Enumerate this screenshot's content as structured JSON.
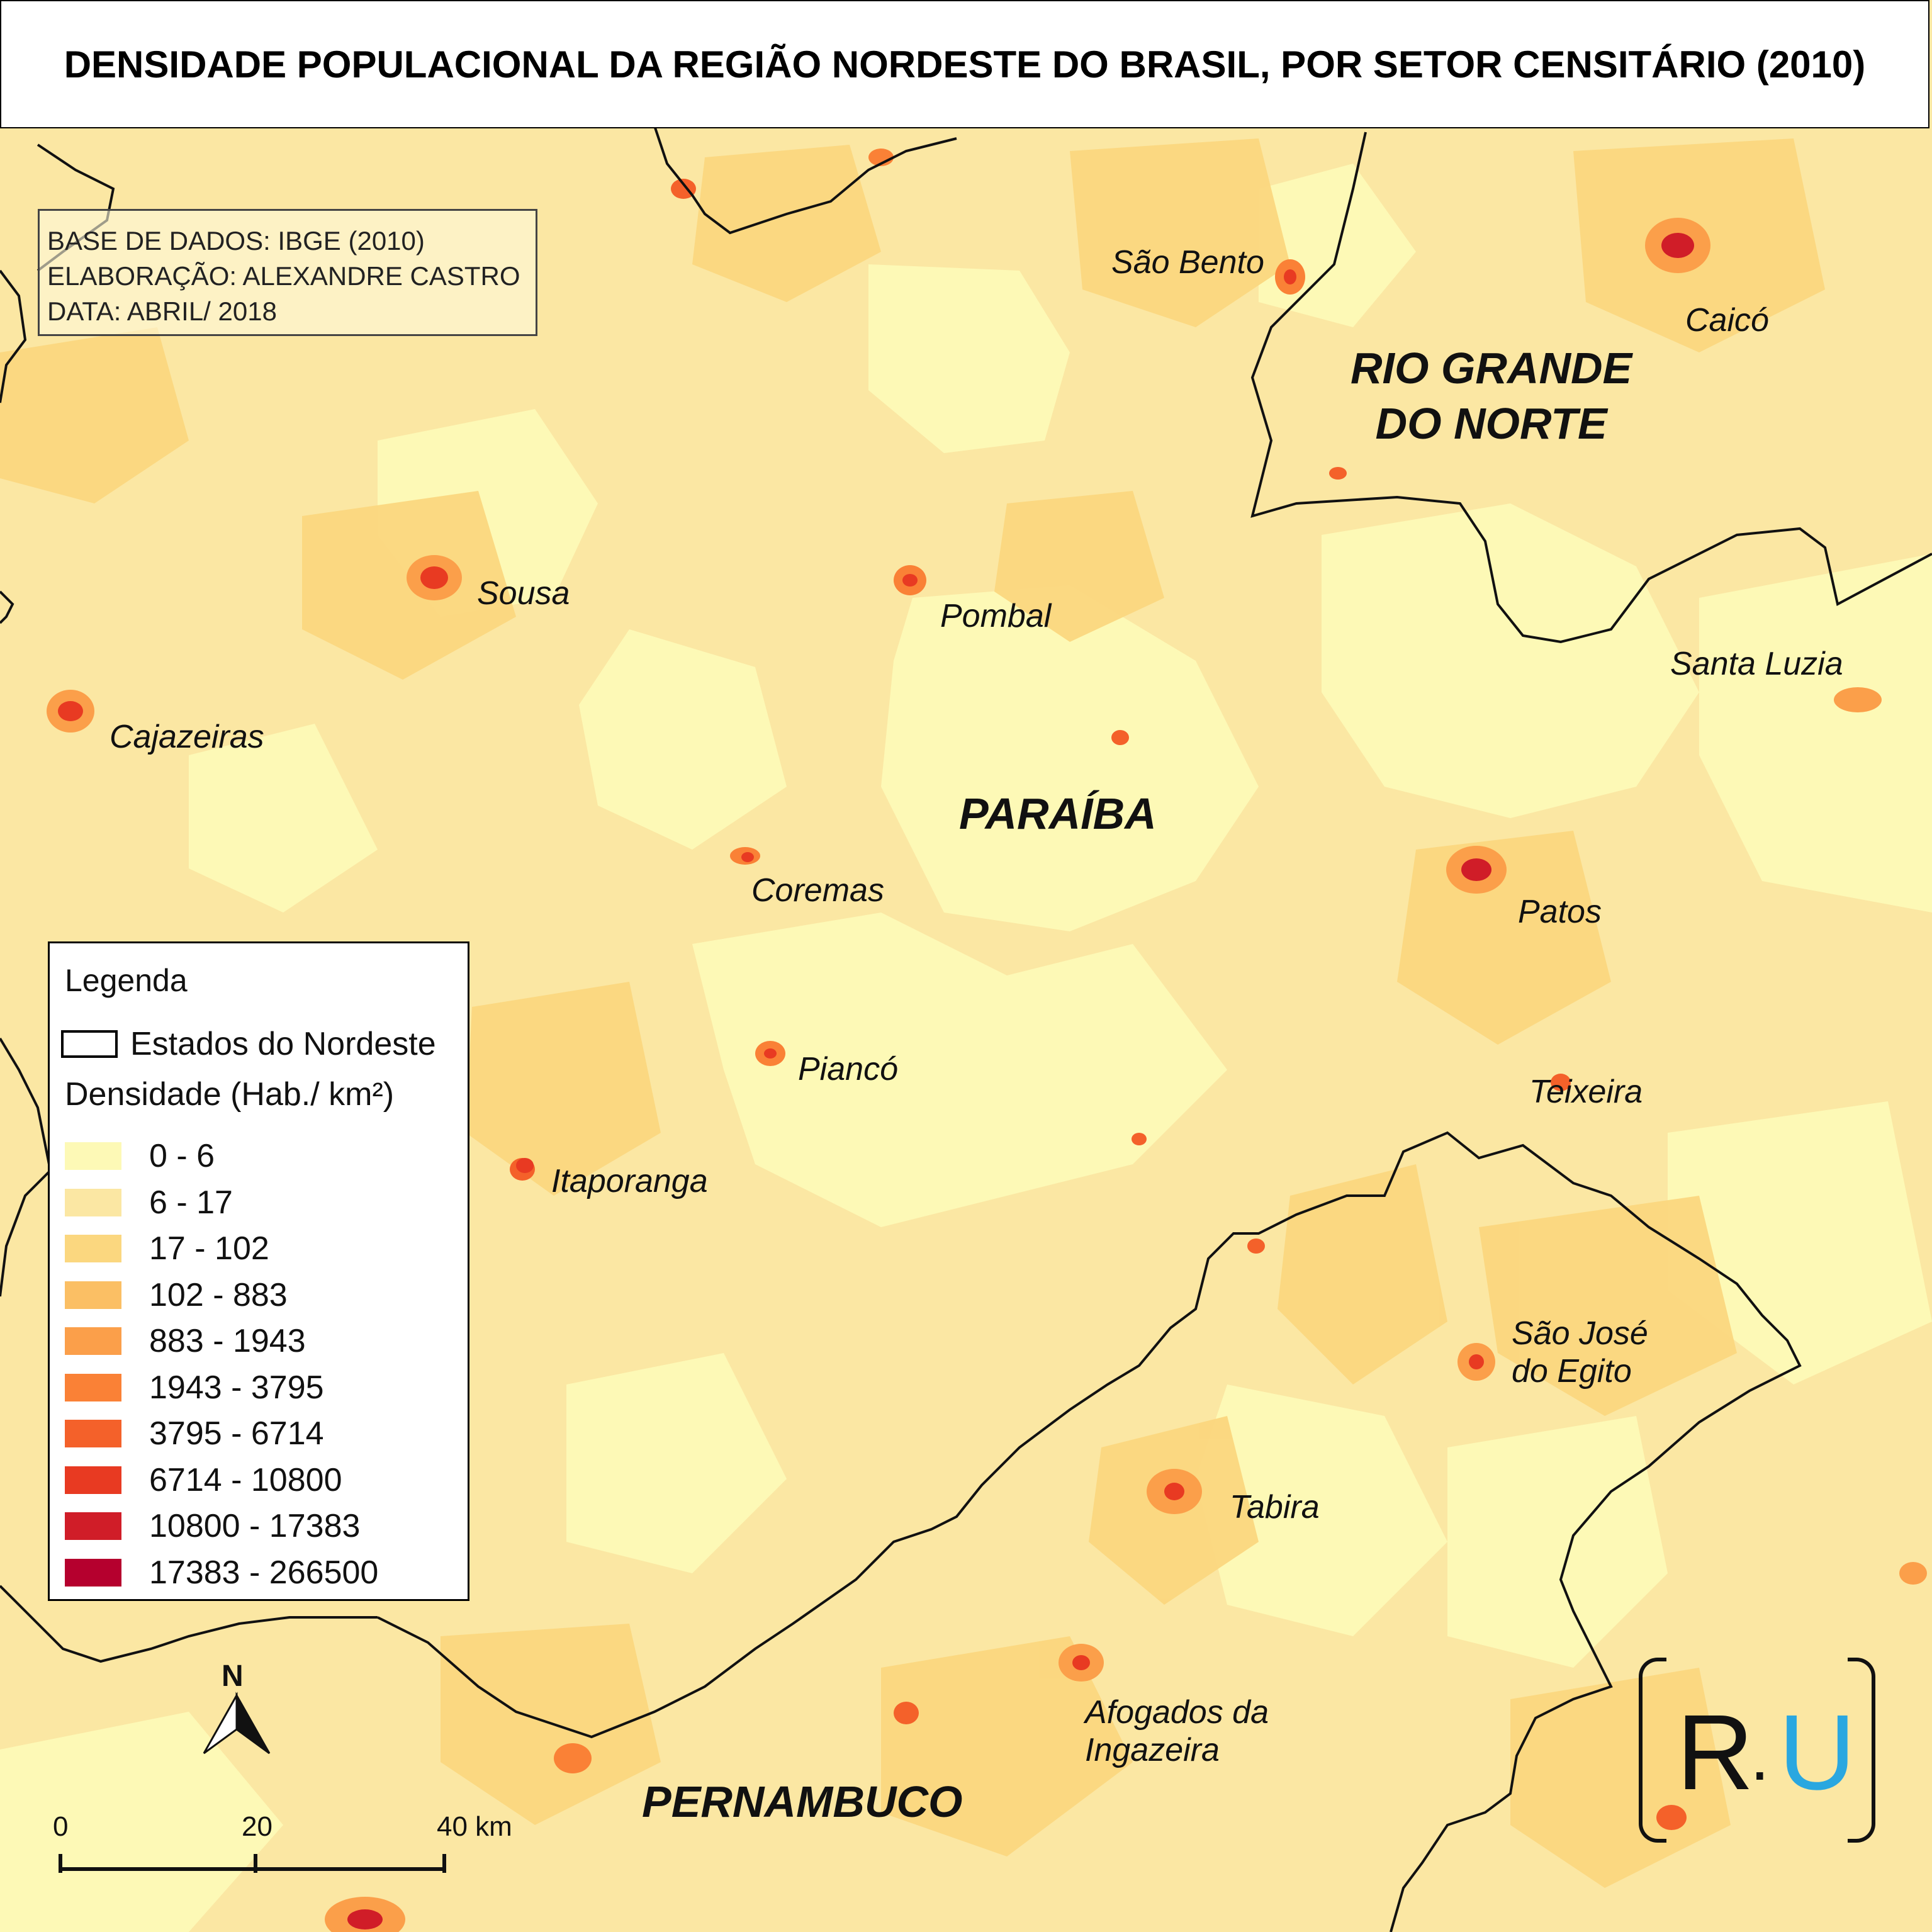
{
  "title": "DENSIDADE POPULACIONAL DA REGIÃO NORDESTE DO BRASIL, POR SETOR CENSITÁRIO (2010)",
  "credits": {
    "line1": "BASE DE DADOS: IBGE (2010)",
    "line2": "ELABORAÇÃO: ALEXANDRE CASTRO",
    "line3": "DATA: ABRIL/ 2018"
  },
  "states": {
    "rn_line1": "RIO GRANDE",
    "rn_line2": "DO NORTE",
    "pb": "PARAÍBA",
    "pe": "PERNAMBUCO"
  },
  "cities": {
    "sao_bento": "São Bento",
    "caico": "Caicó",
    "sousa": "Sousa",
    "pombal": "Pombal",
    "cajazeiras": "Cajazeiras",
    "santa_luzia": "Santa Luzia",
    "coremas": "Coremas",
    "patos": "Patos",
    "pianco": "Piancó",
    "teixeira": "Teixeira",
    "itaporanga": "Itaporanga",
    "sao_jose_1": "São José",
    "sao_jose_2": "do Egito",
    "tabira": "Tabira",
    "afogados_1": "Afogados da",
    "afogados_2": "Ingazeira"
  },
  "legend": {
    "title": "Legenda",
    "states_label": "Estados do Nordeste",
    "density_title": "Densidade (Hab./ km²)",
    "classes": [
      {
        "label": "0 - 6",
        "color": "#fdf9b6"
      },
      {
        "label": "6 - 17",
        "color": "#fbe7a3"
      },
      {
        "label": "17 - 102",
        "color": "#fbd77f"
      },
      {
        "label": "102 - 883",
        "color": "#fbbf64"
      },
      {
        "label": "883 - 1943",
        "color": "#fb9f4a"
      },
      {
        "label": "1943 - 3795",
        "color": "#fa8136"
      },
      {
        "label": "3795 - 6714",
        "color": "#f4612a"
      },
      {
        "label": "6714 - 10800",
        "color": "#e83a22"
      },
      {
        "label": "10800 - 17383",
        "color": "#d01d28"
      },
      {
        "label": "17383 - 266500",
        "color": "#b5002e"
      }
    ]
  },
  "north_label": "N",
  "scale": {
    "label_0": "0",
    "label_20": "20",
    "label_40": "40 km"
  },
  "logo": {
    "left": "R",
    "dot": "·",
    "right": "U",
    "accent_color": "#2aa7e0"
  }
}
